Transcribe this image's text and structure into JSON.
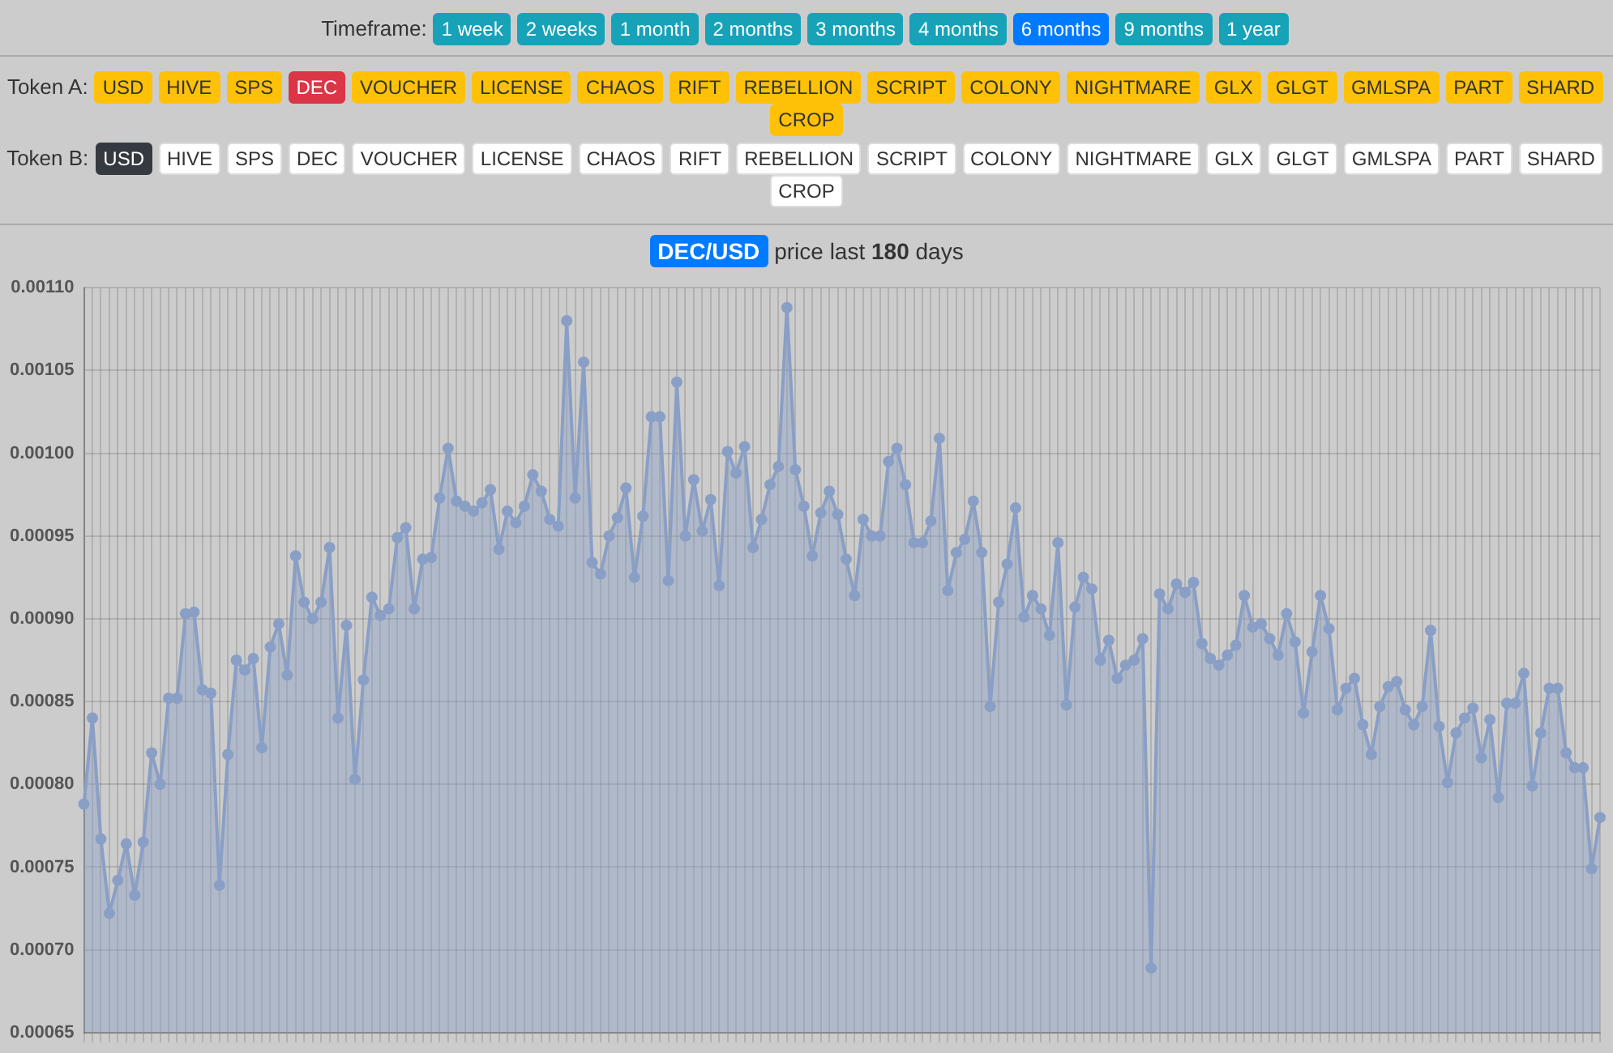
{
  "chart_data": {
    "type": "area",
    "title": "DEC/USD price last 180 days",
    "categories": [
      null,
      null,
      null,
      null,
      null,
      null,
      null,
      null,
      null,
      null,
      null,
      null,
      null,
      null,
      null,
      null,
      null,
      null,
      null,
      null,
      null,
      null,
      null,
      null,
      null,
      null,
      null,
      null,
      null,
      null,
      null,
      null,
      null,
      null,
      null,
      null,
      null,
      null,
      null,
      null,
      null,
      null,
      null,
      null,
      null,
      null,
      null,
      null,
      null,
      null,
      null,
      null,
      null,
      null,
      null,
      null,
      null,
      null,
      null,
      null,
      null,
      null,
      null,
      null,
      null,
      null,
      null,
      null,
      null,
      null,
      null,
      null,
      null,
      null,
      null,
      null,
      null,
      null,
      null,
      null,
      null,
      null,
      null,
      null,
      null,
      null,
      null,
      null,
      null,
      null,
      null,
      null,
      null,
      null,
      null,
      null,
      null,
      null,
      null,
      null,
      null,
      null,
      null,
      null,
      null,
      null,
      null,
      null,
      null,
      null,
      null,
      null,
      null,
      null,
      null,
      null,
      null,
      null,
      null,
      null,
      null,
      null,
      null,
      null,
      null,
      null,
      null,
      null,
      null,
      null,
      null,
      null,
      null,
      null,
      null,
      null,
      null,
      null,
      null,
      null,
      null,
      null,
      null,
      null,
      null,
      null,
      null,
      null,
      null,
      null,
      null,
      null,
      null,
      null,
      null,
      null,
      null,
      null,
      null,
      null,
      null,
      null,
      null,
      null,
      null,
      null,
      null,
      null,
      null,
      null,
      null,
      null,
      null,
      null,
      null,
      null,
      null,
      null,
      null,
      null
    ],
    "series": [
      {
        "color": "#8a9fc6",
        "values": [
          0.000788,
          0.00084,
          0.000767,
          0.000722,
          0.000742,
          0.000764,
          0.000733,
          0.000765,
          0.000819,
          0.0008,
          0.000852,
          0.000852,
          0.000903,
          0.000904,
          0.000857,
          0.000855,
          0.000739,
          0.000818,
          0.000875,
          0.000869,
          0.000876,
          0.000822,
          0.000883,
          0.000897,
          0.000866,
          0.000938,
          0.00091,
          0.0009,
          0.00091,
          0.000943,
          0.00084,
          0.000896,
          0.000803,
          0.000863,
          0.000913,
          0.000902,
          0.000906,
          0.000949,
          0.000955,
          0.000906,
          0.000936,
          0.000937,
          0.000973,
          0.001003,
          0.000971,
          0.000968,
          0.000965,
          0.00097,
          0.000978,
          0.000942,
          0.000965,
          0.000958,
          0.000968,
          0.000987,
          0.000977,
          0.00096,
          0.000956,
          0.00108,
          0.000973,
          0.001055,
          0.000934,
          0.000927,
          0.00095,
          0.000961,
          0.000979,
          0.000925,
          0.000962,
          0.001022,
          0.001022,
          0.000923,
          0.001043,
          0.00095,
          0.000984,
          0.000953,
          0.000972,
          0.00092,
          0.001001,
          0.000988,
          0.001004,
          0.000943,
          0.00096,
          0.000981,
          0.000992,
          0.001088,
          0.00099,
          0.000968,
          0.000938,
          0.000964,
          0.000977,
          0.000963,
          0.000936,
          0.000914,
          0.00096,
          0.00095,
          0.00095,
          0.000995,
          0.001003,
          0.000981,
          0.000946,
          0.000946,
          0.000959,
          0.001009,
          0.000917,
          0.00094,
          0.000948,
          0.000971,
          0.00094,
          0.000847,
          0.00091,
          0.000933,
          0.000967,
          0.000901,
          0.000914,
          0.000906,
          0.00089,
          0.000946,
          0.000848,
          0.000907,
          0.000925,
          0.000918,
          0.000875,
          0.000887,
          0.000864,
          0.000872,
          0.000875,
          0.000888,
          0.000689,
          0.000915,
          0.000906,
          0.000921,
          0.000916,
          0.000922,
          0.000885,
          0.000876,
          0.000872,
          0.000878,
          0.000884,
          0.000914,
          0.000895,
          0.000897,
          0.000888,
          0.000878,
          0.000903,
          0.000886,
          0.000843,
          0.00088,
          0.000914,
          0.000894,
          0.000845,
          0.000858,
          0.000864,
          0.000836,
          0.000818,
          0.000847,
          0.000859,
          0.000862,
          0.000845,
          0.000836,
          0.000847,
          0.000893,
          0.000835,
          0.000801,
          0.000831,
          0.00084,
          0.000846,
          0.000816,
          0.000839,
          0.000792,
          0.000849,
          0.000849,
          0.000867,
          0.000799,
          0.000831,
          0.000858,
          0.000858,
          0.000819,
          0.00081,
          0.00081,
          0.000749,
          0.00078
        ]
      }
    ],
    "ylim": [
      0.00065,
      0.0011
    ],
    "yticks": [
      0.00065,
      {
        "value": 0.0007,
        "label": "0.00070"
      },
      0.00075,
      {
        "value": 0.0008,
        "label": "0.00080"
      },
      0.00085,
      {
        "value": 0.0009,
        "label": "0.00090"
      },
      0.00095,
      {
        "value": 0.001,
        "label": "0.00100"
      },
      0.00105,
      {
        "value": 0.0011,
        "label": "0.00110"
      }
    ],
    "grid": true,
    "marker": "circle",
    "legend": false,
    "annotations": [
      "Timeframe:",
      "1 week",
      "2 weeks",
      "1 month",
      "2 months",
      "3 months",
      "4 months",
      "6 months",
      "9 months",
      "1 year",
      "Token A:",
      "USD",
      "HIVE",
      "SPS",
      "DEC",
      "VOUCHER",
      "LICENSE",
      "CHAOS",
      "RIFT",
      "REBELLION",
      "SCRIPT",
      "COLONY",
      "NIGHTMARE",
      "GLX",
      "GLGT",
      "GMLSPA",
      "PART",
      "SHARD",
      "CROP",
      "Token B:",
      "USD",
      "HIVE",
      "SPS",
      "DEC",
      "VOUCHER",
      "LICENSE",
      "CHAOS",
      "RIFT",
      "REBELLION",
      "SCRIPT",
      "COLONY",
      "NIGHTMARE",
      "GLX",
      "GLGT",
      "GMLSPA",
      "PART",
      "SHARD",
      "CROP"
    ]
  }
}
